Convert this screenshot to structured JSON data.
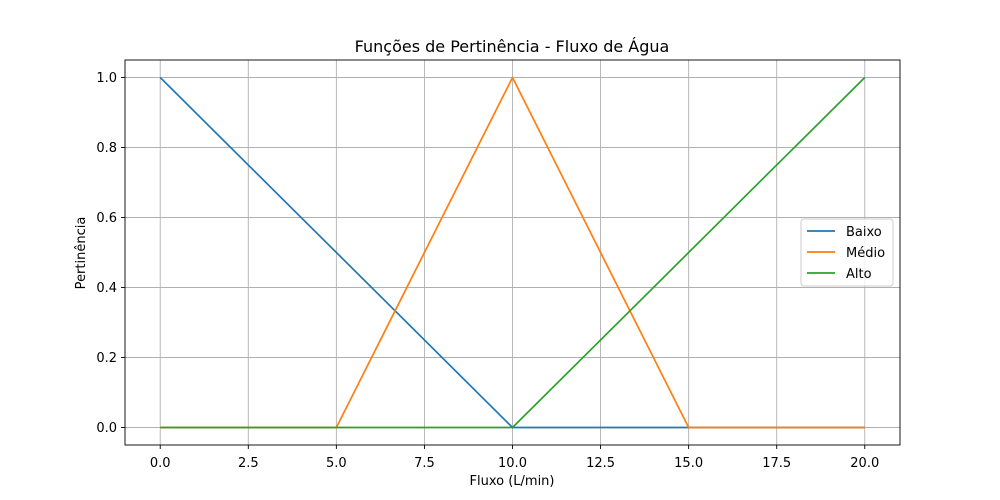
{
  "chart_data": {
    "type": "line",
    "title": "Funções de Pertinência - Fluxo de Água",
    "xlabel": "Fluxo (L/min)",
    "ylabel": "Pertinência",
    "xlim": [
      -1,
      21
    ],
    "ylim": [
      -0.05,
      1.05
    ],
    "xticks": [
      0.0,
      2.5,
      5.0,
      7.5,
      10.0,
      12.5,
      15.0,
      17.5,
      20.0
    ],
    "xtick_labels": [
      "0.0",
      "2.5",
      "5.0",
      "7.5",
      "10.0",
      "12.5",
      "15.0",
      "17.5",
      "20.0"
    ],
    "yticks": [
      0.0,
      0.2,
      0.4,
      0.6,
      0.8,
      1.0
    ],
    "ytick_labels": [
      "0.0",
      "0.2",
      "0.4",
      "0.6",
      "0.8",
      "1.0"
    ],
    "grid": true,
    "legend_position": "center-right",
    "series": [
      {
        "name": "Baixo",
        "color": "#1f77b4",
        "x": [
          0,
          10,
          15,
          20
        ],
        "y": [
          1,
          0,
          0,
          0
        ]
      },
      {
        "name": "Médio",
        "color": "#ff7f0e",
        "x": [
          0,
          5,
          10,
          15,
          20
        ],
        "y": [
          0,
          0,
          1,
          0,
          0
        ]
      },
      {
        "name": "Alto",
        "color": "#2ca02c",
        "x": [
          0,
          10,
          20
        ],
        "y": [
          0,
          0,
          1
        ]
      }
    ]
  }
}
